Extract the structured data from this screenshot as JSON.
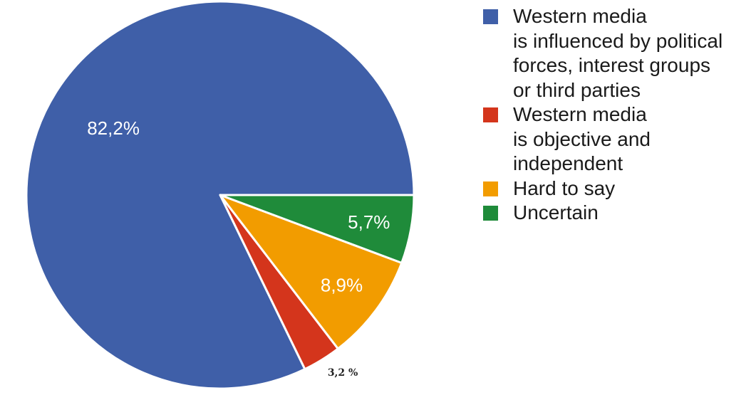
{
  "chart_data": {
    "type": "pie",
    "slices": [
      {
        "label": "Western media\nis influenced by political\nforces, interest groups\nor third parties",
        "value": 82.2,
        "value_label": "82,2%",
        "color": "#3f5fa8"
      },
      {
        "label": "Western media\nis objective and\nindependent",
        "value": 3.2,
        "value_label": "3,2 %",
        "color": "#d4351c"
      },
      {
        "label": "Hard to say",
        "value": 8.9,
        "value_label": "8,9%",
        "color": "#f29c00"
      },
      {
        "label": "Uncertain",
        "value": 5.7,
        "value_label": "5,7%",
        "color": "#1f8b3a"
      }
    ],
    "legend_position": "right"
  }
}
